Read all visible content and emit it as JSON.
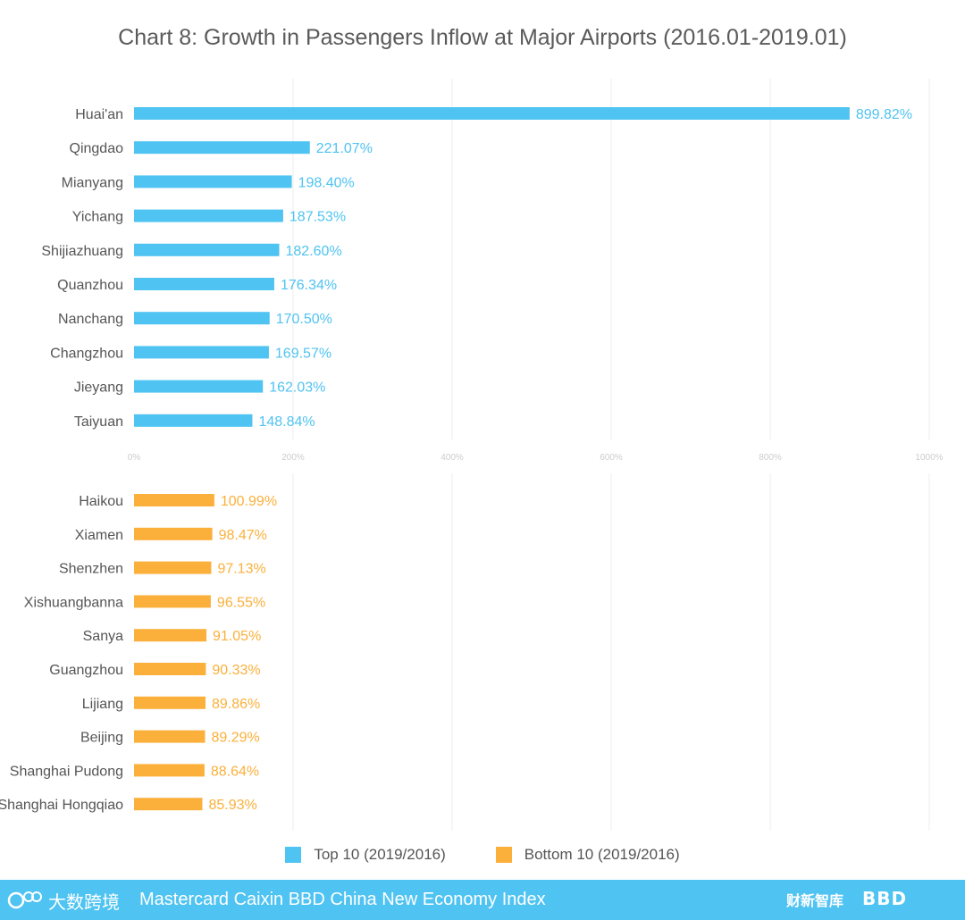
{
  "title": "Chart 8: Growth in Passengers Inflow at Major Airports (2016.01-2019.01)",
  "legend": {
    "top": "Top 10 (2019/2016)",
    "bottom": "Bottom 10 (2019/2016)"
  },
  "colors": {
    "top": "#4fc3f1",
    "bottom": "#fbb03b",
    "grid": "#ececec",
    "axis_text": "#cccccc"
  },
  "footer": {
    "left_logo": "大数跨境",
    "text": "Mastercard Caixin BBD China New Economy Index",
    "right_logo_1": "财新智库",
    "right_logo_2": "BBD"
  },
  "chart_data": {
    "type": "bar",
    "orientation": "horizontal",
    "title": "Chart 8: Growth in Passengers Inflow at Major Airports (2016.01-2019.01)",
    "xlim": [
      0,
      1000
    ],
    "x_ticks": [
      "0%",
      "200%",
      "400%",
      "600%",
      "800%",
      "1000%"
    ],
    "grid": true,
    "legend_position": "bottom",
    "series": [
      {
        "name": "Top 10 (2019/2016)",
        "categories": [
          "Huai'an",
          "Qingdao",
          "Mianyang",
          "Yichang",
          "Shijiazhuang",
          "Quanzhou",
          "Nanchang",
          "Changzhou",
          "Jieyang",
          "Taiyuan"
        ],
        "values": [
          899.82,
          221.07,
          198.4,
          187.53,
          182.6,
          176.34,
          170.5,
          169.57,
          162.03,
          148.84
        ],
        "labels": [
          "899.82%",
          "221.07%",
          "198.40%",
          "187.53%",
          "182.60%",
          "176.34%",
          "170.50%",
          "169.57%",
          "162.03%",
          "148.84%"
        ]
      },
      {
        "name": "Bottom 10 (2019/2016)",
        "categories": [
          "Haikou",
          "Xiamen",
          "Shenzhen",
          "Xishuangbanna",
          "Sanya",
          "Guangzhou",
          "Lijiang",
          "Beijing",
          "Shanghai Pudong",
          "Shanghai Hongqiao"
        ],
        "values": [
          100.99,
          98.47,
          97.13,
          96.55,
          91.05,
          90.33,
          89.86,
          89.29,
          88.64,
          85.93
        ],
        "labels": [
          "100.99%",
          "98.47%",
          "97.13%",
          "96.55%",
          "91.05%",
          "90.33%",
          "89.86%",
          "89.29%",
          "88.64%",
          "85.93%"
        ]
      }
    ]
  }
}
